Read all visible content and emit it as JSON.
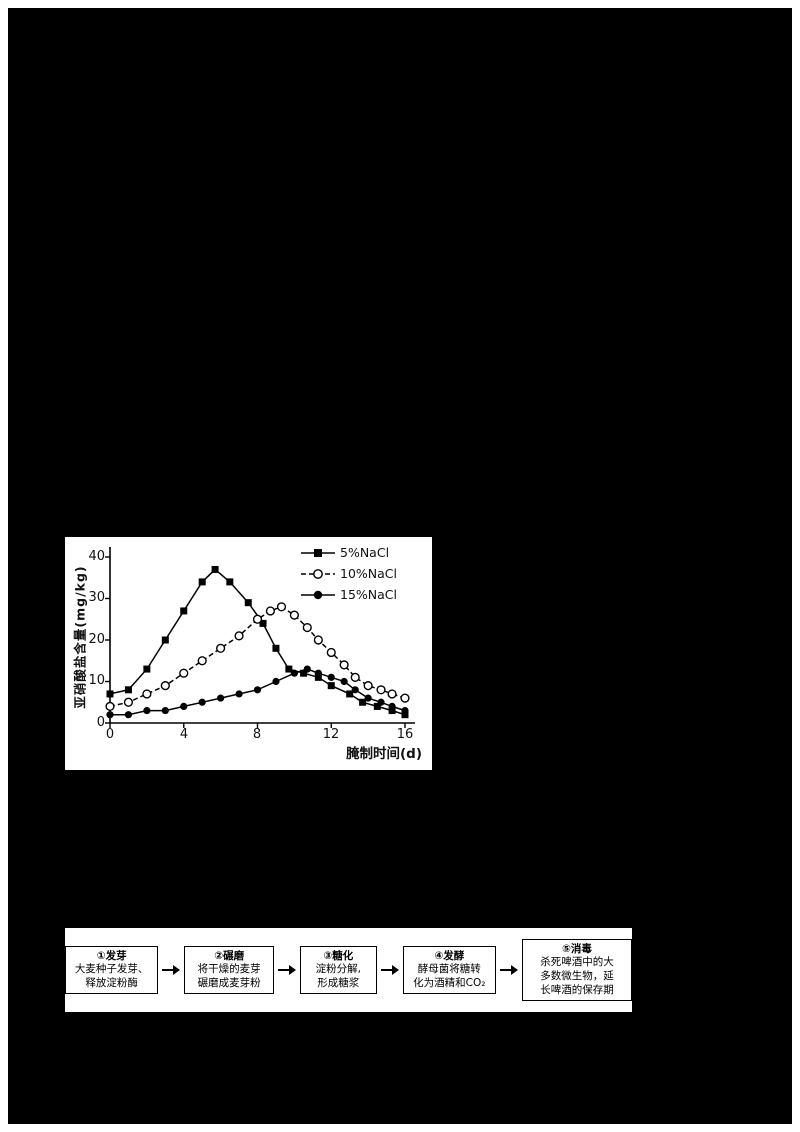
{
  "page": {
    "background": "#000000",
    "panel_background": "#ffffff"
  },
  "chart_data": {
    "type": "line",
    "title": "",
    "xlabel": "腌制时间(d)",
    "ylabel": "亚硝酸盐含量(mg/kg)",
    "xlim": [
      0,
      16
    ],
    "ylim": [
      0,
      40
    ],
    "xticks": [
      0,
      4,
      8,
      12,
      16
    ],
    "yticks": [
      0,
      10,
      20,
      30,
      40
    ],
    "grid": false,
    "legend_position": "top-right",
    "series": [
      {
        "name": "5%NaCl",
        "marker": "filled-square",
        "line": "solid",
        "color": "#000000",
        "points": [
          [
            0,
            7
          ],
          [
            1,
            8
          ],
          [
            2,
            13
          ],
          [
            3,
            20
          ],
          [
            4,
            27
          ],
          [
            5,
            34
          ],
          [
            5.7,
            37
          ],
          [
            6.5,
            34
          ],
          [
            7.5,
            29
          ],
          [
            8.3,
            24
          ],
          [
            9,
            18
          ],
          [
            9.7,
            13
          ],
          [
            10.5,
            12
          ],
          [
            11.3,
            11
          ],
          [
            12,
            9
          ],
          [
            13,
            7
          ],
          [
            13.7,
            5
          ],
          [
            14.5,
            4
          ],
          [
            15.3,
            3
          ],
          [
            16,
            2
          ]
        ]
      },
      {
        "name": "10%NaCl",
        "marker": "open-circle",
        "line": "dashed",
        "color": "#000000",
        "points": [
          [
            0,
            4
          ],
          [
            1,
            5
          ],
          [
            2,
            7
          ],
          [
            3,
            9
          ],
          [
            4,
            12
          ],
          [
            5,
            15
          ],
          [
            6,
            18
          ],
          [
            7,
            21
          ],
          [
            8,
            25
          ],
          [
            8.7,
            27
          ],
          [
            9.3,
            28
          ],
          [
            10,
            26
          ],
          [
            10.7,
            23
          ],
          [
            11.3,
            20
          ],
          [
            12,
            17
          ],
          [
            12.7,
            14
          ],
          [
            13.3,
            11
          ],
          [
            14,
            9
          ],
          [
            14.7,
            8
          ],
          [
            15.3,
            7
          ],
          [
            16,
            6
          ]
        ]
      },
      {
        "name": "15%NaCl",
        "marker": "filled-circle",
        "line": "solid",
        "color": "#000000",
        "points": [
          [
            0,
            2
          ],
          [
            1,
            2
          ],
          [
            2,
            3
          ],
          [
            3,
            3
          ],
          [
            4,
            4
          ],
          [
            5,
            5
          ],
          [
            6,
            6
          ],
          [
            7,
            7
          ],
          [
            8,
            8
          ],
          [
            9,
            10
          ],
          [
            10,
            12
          ],
          [
            10.7,
            13
          ],
          [
            11.3,
            12
          ],
          [
            12,
            11
          ],
          [
            12.7,
            10
          ],
          [
            13.3,
            8
          ],
          [
            14,
            6
          ],
          [
            14.7,
            5
          ],
          [
            15.3,
            4
          ],
          [
            16,
            3
          ]
        ]
      }
    ]
  },
  "flowchart": {
    "steps": [
      {
        "title": "①发芽",
        "lines": [
          "大麦种子发芽、",
          "释放淀粉酶"
        ]
      },
      {
        "title": "②碾磨",
        "lines": [
          "将干燥的麦芽",
          "碾磨成麦芽粉"
        ]
      },
      {
        "title": "③糖化",
        "lines": [
          "淀粉分解,",
          "形成糖浆"
        ]
      },
      {
        "title": "④发酵",
        "lines": [
          "酵母菌将糖转",
          "化为酒精和CO₂"
        ]
      },
      {
        "title": "⑤消毒",
        "lines": [
          "杀死啤酒中的大",
          "多数微生物，延",
          "长啤酒的保存期"
        ]
      }
    ]
  }
}
